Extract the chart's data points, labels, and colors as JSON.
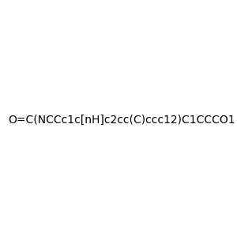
{
  "smiles": "O=C(NCCc1c[nH]c2cc(C)ccc12)C1CCCO1",
  "title": "",
  "background_color": "#f0f0f0",
  "atom_colors": {
    "N": "#0000FF",
    "O": "#FF0000",
    "C": "#000000",
    "H": "#000000"
  },
  "figsize": [
    3.0,
    3.0
  ],
  "dpi": 100
}
